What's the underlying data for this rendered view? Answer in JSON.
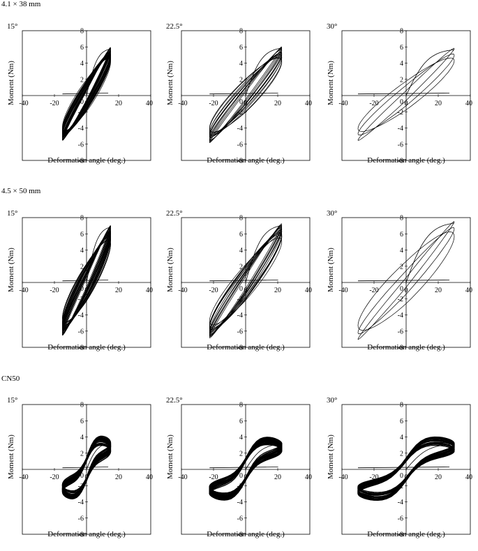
{
  "groups": [
    {
      "label": "4.1 × 38 mm"
    },
    {
      "label": "4.5 × 50 mm"
    },
    {
      "label": "CN50"
    }
  ],
  "axis": {
    "xlabel": "Deformation angle (deg.)",
    "ylabel": "Moment (Nm)",
    "x_ticks": [
      "-40",
      "-20",
      "0",
      "20",
      "40"
    ],
    "y_ticks": [
      "-8",
      "-6",
      "-4",
      "-2",
      "0",
      "2",
      "4",
      "6",
      "8"
    ]
  },
  "chart_data": [
    {
      "type": "line",
      "group": "4.1 × 38 mm",
      "angle_label": "15°",
      "xlim": [
        -40,
        40
      ],
      "ylim": [
        -8,
        8
      ],
      "xlabel": "Deformation angle (deg.)",
      "ylabel": "Moment (Nm)",
      "amplitude_deg": 15,
      "peak_moment_pos": 5.9,
      "peak_moment_neg": -5.5,
      "cycles": 30
    },
    {
      "type": "line",
      "group": "4.1 × 38 mm",
      "angle_label": "22.5°",
      "xlim": [
        -40,
        40
      ],
      "ylim": [
        -8,
        8
      ],
      "xlabel": "Deformation angle (deg.)",
      "ylabel": "Moment (Nm)",
      "amplitude_deg": 22.5,
      "peak_moment_pos": 6.0,
      "peak_moment_neg": -5.8,
      "cycles": 12
    },
    {
      "type": "line",
      "group": "4.1 × 38 mm",
      "angle_label": "30°",
      "xlim": [
        -40,
        40
      ],
      "ylim": [
        -8,
        8
      ],
      "xlabel": "Deformation angle (deg.)",
      "ylabel": "Moment (Nm)",
      "amplitude_deg": 30,
      "peak_moment_pos": 5.8,
      "peak_moment_neg": -5.5,
      "cycles": 3
    },
    {
      "type": "line",
      "group": "4.5 × 50 mm",
      "angle_label": "15°",
      "xlim": [
        -40,
        40
      ],
      "ylim": [
        -8,
        8
      ],
      "xlabel": "Deformation angle (deg.)",
      "ylabel": "Moment (Nm)",
      "amplitude_deg": 15,
      "peak_moment_pos": 7.0,
      "peak_moment_neg": -6.5,
      "cycles": 30
    },
    {
      "type": "line",
      "group": "4.5 × 50 mm",
      "angle_label": "22.5°",
      "xlim": [
        -40,
        40
      ],
      "ylim": [
        -8,
        8
      ],
      "xlabel": "Deformation angle (deg.)",
      "ylabel": "Moment (Nm)",
      "amplitude_deg": 22.5,
      "peak_moment_pos": 7.2,
      "peak_moment_neg": -6.8,
      "cycles": 14
    },
    {
      "type": "line",
      "group": "4.5 × 50 mm",
      "angle_label": "30°",
      "xlim": [
        -40,
        40
      ],
      "ylim": [
        -8,
        8
      ],
      "xlabel": "Deformation angle (deg.)",
      "ylabel": "Moment (Nm)",
      "amplitude_deg": 30,
      "peak_moment_pos": 7.5,
      "peak_moment_neg": -7.0,
      "cycles": 3
    },
    {
      "type": "line",
      "group": "CN50",
      "angle_label": "15°",
      "xlim": [
        -40,
        40
      ],
      "ylim": [
        -8,
        8
      ],
      "xlabel": "Deformation angle (deg.)",
      "ylabel": "Moment (Nm)",
      "amplitude_deg": 15,
      "peak_moment_pos": 3.3,
      "peak_moment_neg": -2.8,
      "cycles": 25
    },
    {
      "type": "line",
      "group": "CN50",
      "angle_label": "22.5°",
      "xlim": [
        -40,
        40
      ],
      "ylim": [
        -8,
        8
      ],
      "xlabel": "Deformation angle (deg.)",
      "ylabel": "Moment (Nm)",
      "amplitude_deg": 22.5,
      "peak_moment_pos": 3.2,
      "peak_moment_neg": -3.0,
      "cycles": 25
    },
    {
      "type": "line",
      "group": "CN50",
      "angle_label": "30°",
      "xlim": [
        -40,
        40
      ],
      "ylim": [
        -8,
        8
      ],
      "xlabel": "Deformation angle (deg.)",
      "ylabel": "Moment (Nm)",
      "amplitude_deg": 30,
      "peak_moment_pos": 3.2,
      "peak_moment_neg": -3.0,
      "cycles": 25
    }
  ]
}
